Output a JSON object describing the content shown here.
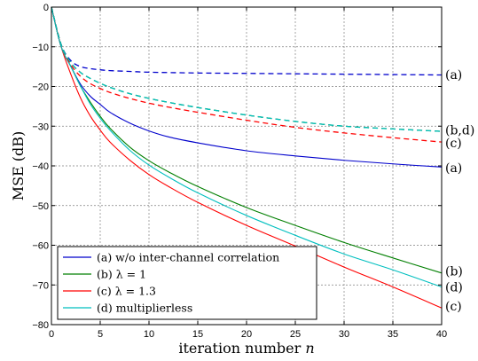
{
  "chart_data": {
    "type": "line",
    "xlabel": "iteration number n",
    "ylabel": "MSE (dB)",
    "xlim": [
      0,
      40
    ],
    "ylim": [
      -80,
      0
    ],
    "xticks": [
      0,
      5,
      10,
      15,
      20,
      25,
      30,
      35,
      40
    ],
    "yticks": [
      0,
      -10,
      -20,
      -30,
      -40,
      -50,
      -60,
      -70,
      -80
    ],
    "grid": true,
    "legend_position": "bottom-left",
    "legend": [
      {
        "label": "(a) w/o inter-channel correlation",
        "color": "#0000cc"
      },
      {
        "label": "(b) λ = 1",
        "color": "#007f00"
      },
      {
        "label": "(c) λ = 1.3",
        "color": "#ff0000"
      },
      {
        "label": "(d) multiplierless",
        "color": "#00bfbf"
      }
    ],
    "series": [
      {
        "color": "#0000cc",
        "dash": "none",
        "x": [
          0,
          1,
          2,
          3,
          4,
          5,
          6,
          8,
          10,
          12,
          15,
          20,
          25,
          30,
          35,
          40
        ],
        "y": [
          0,
          -10,
          -15,
          -19.5,
          -22.5,
          -24.5,
          -26.5,
          -29.2,
          -31.2,
          -32.7,
          -34.2,
          -36.2,
          -37.5,
          -38.6,
          -39.5,
          -40.3
        ]
      },
      {
        "color": "#007f00",
        "dash": "none",
        "x": [
          0,
          1,
          2,
          3,
          4,
          5,
          6,
          8,
          10,
          12,
          15,
          20,
          25,
          30,
          35,
          40
        ],
        "y": [
          0,
          -10,
          -15,
          -20,
          -24,
          -27.5,
          -30.5,
          -35.2,
          -38.7,
          -41.5,
          -45.2,
          -50.5,
          -55,
          -59.3,
          -63.2,
          -67
        ]
      },
      {
        "color": "#ff0000",
        "dash": "none",
        "x": [
          0,
          1,
          2,
          3,
          4,
          5,
          6,
          8,
          10,
          12,
          15,
          20,
          25,
          30,
          35,
          40
        ],
        "y": [
          0,
          -10,
          -17,
          -23,
          -27.5,
          -31,
          -34,
          -38.5,
          -42.2,
          -45.2,
          -49.2,
          -55,
          -60.2,
          -65.5,
          -70.5,
          -75.8
        ]
      },
      {
        "color": "#00bfbf",
        "dash": "none",
        "x": [
          0,
          1,
          2,
          3,
          4,
          5,
          6,
          8,
          10,
          12,
          15,
          20,
          25,
          30,
          35,
          40
        ],
        "y": [
          0,
          -10,
          -15,
          -20,
          -24.5,
          -28,
          -31,
          -36,
          -39.8,
          -42.8,
          -46.8,
          -52.5,
          -57.5,
          -62.2,
          -66.2,
          -70.5
        ]
      },
      {
        "color": "#0000cc",
        "dash": "6,4",
        "x": [
          0,
          1,
          2,
          3,
          4,
          5,
          6,
          8,
          10,
          15,
          20,
          25,
          30,
          35,
          40
        ],
        "y": [
          0,
          -9.5,
          -13.5,
          -15,
          -15.5,
          -15.8,
          -16,
          -16.2,
          -16.4,
          -16.6,
          -16.7,
          -16.8,
          -16.9,
          -17,
          -17.1
        ]
      },
      {
        "color": "#ff0000",
        "dash": "6,4",
        "x": [
          0,
          1,
          2,
          3,
          4,
          5,
          6,
          8,
          10,
          12,
          15,
          20,
          25,
          30,
          35,
          40
        ],
        "y": [
          0,
          -9.5,
          -14.5,
          -17.5,
          -19.3,
          -20.5,
          -21.5,
          -23,
          -24.2,
          -25.2,
          -26.5,
          -28.5,
          -30.3,
          -31.7,
          -32.9,
          -34
        ]
      },
      {
        "color": "#007f00",
        "dash": "6,4",
        "x": [
          0,
          1,
          2,
          3,
          4,
          5,
          6,
          8,
          10,
          12,
          15,
          20,
          25,
          30,
          35,
          40
        ],
        "y": [
          0,
          -9.5,
          -14,
          -16.5,
          -18,
          -19.2,
          -20.2,
          -21.8,
          -23,
          -24,
          -25.3,
          -27.2,
          -28.8,
          -30,
          -30.7,
          -31.3
        ]
      },
      {
        "color": "#00bfbf",
        "dash": "6,4",
        "x": [
          0,
          1,
          2,
          3,
          4,
          5,
          6,
          8,
          10,
          12,
          15,
          20,
          25,
          30,
          35,
          40
        ],
        "y": [
          0,
          -9.5,
          -14,
          -16.5,
          -18,
          -19.2,
          -20.2,
          -21.8,
          -23,
          -24,
          -25.3,
          -27.2,
          -28.8,
          -30,
          -30.7,
          -31.3
        ]
      }
    ],
    "end_labels": [
      {
        "text": "(a)",
        "y": -17
      },
      {
        "text": "(b,d)",
        "y": -31
      },
      {
        "text": "(c)",
        "y": -34.2
      },
      {
        "text": "(a)",
        "y": -40.4
      },
      {
        "text": "(b)",
        "y": -66.5
      },
      {
        "text": "(d)",
        "y": -70.5
      },
      {
        "text": "(c)",
        "y": -75.3
      }
    ]
  }
}
